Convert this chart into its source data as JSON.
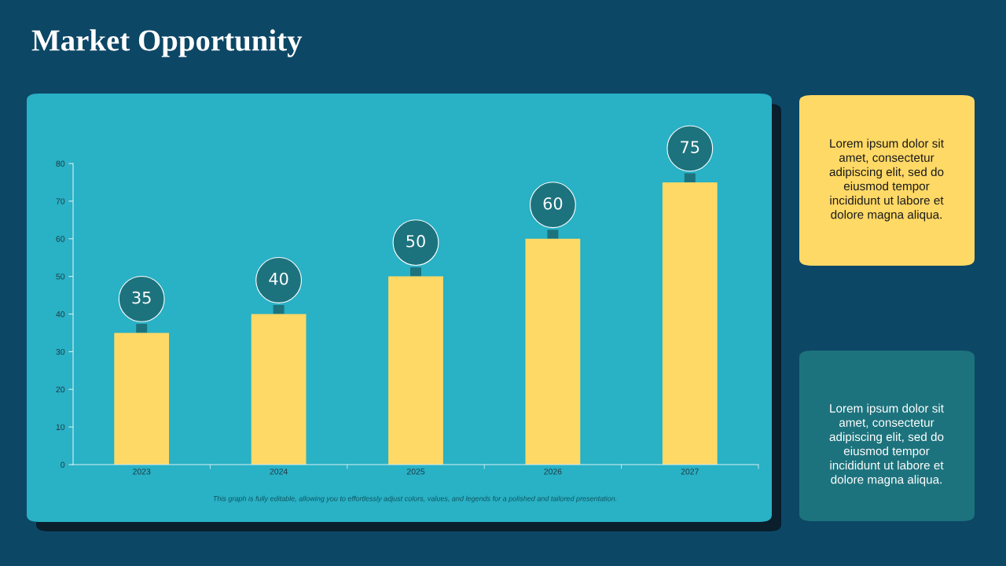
{
  "chart_data": {
    "type": "bar",
    "title": "Market Opportunity",
    "categories": [
      "2023",
      "2024",
      "2025",
      "2026",
      "2027"
    ],
    "values": [
      35,
      40,
      50,
      60,
      75
    ],
    "color": "#ffd966",
    "data_labels": true,
    "ylim": [
      0,
      80
    ],
    "yticks": [
      0,
      10,
      20,
      30,
      40,
      50,
      60,
      70,
      80
    ],
    "grid": false,
    "annotations": [
      "This graph is fully editable, allowing you to effortlessly adjust colors, values, and legends for a polished and tailored presentation.",
      "Lorem ipsum dolor sit amet, consectetur adipiscing elit, sed do eiusmod tempor incididunt ut labore et dolore magna aliqua.",
      "Lorem ipsum dolor sit amet, consectetur adipiscing elit, sed do eiusmod tempor incididunt ut labore et dolore magna aliqua."
    ]
  }
}
